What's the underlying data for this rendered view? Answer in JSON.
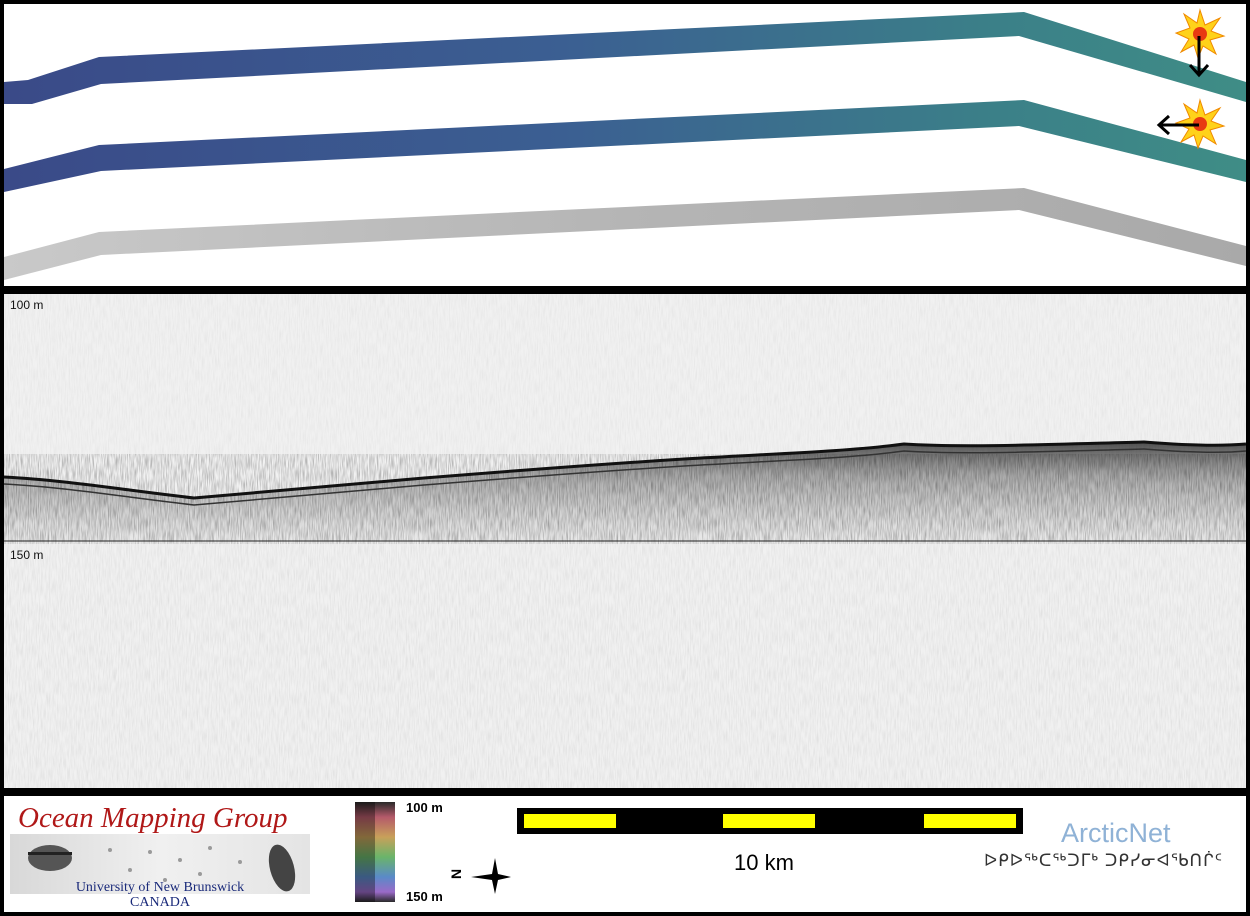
{
  "profile": {
    "depth_top_label": "100 m",
    "depth_mid_label": "150 m"
  },
  "legend": {
    "colorbar_top_label": "100 m",
    "colorbar_bottom_label": "150 m",
    "scale_label": "10 km",
    "north_label": "N"
  },
  "logos": {
    "omg_title": "Ocean Mapping Group",
    "omg_university": "University of New Brunswick",
    "omg_country": "CANADA",
    "arcticnet_title": "ArcticNet",
    "arcticnet_subtitle": "ᐅᑭᐅᖅᑕᖅᑐᒥᒃ ᑐᑭᓯᓂᐊᖃᑎᒌᑦ"
  },
  "colors": {
    "swath_dark": "#3d4d8a",
    "swath_light": "#3d8a86",
    "backscatter": "#bdbdbd",
    "scale_yellow": "#ffff00",
    "omg_red": "#b01818",
    "arctic_blue": "#8fb2d6"
  },
  "icons": [
    "sun-icon",
    "down-arrow-icon",
    "left-arrow-icon",
    "north-arrow-icon"
  ]
}
